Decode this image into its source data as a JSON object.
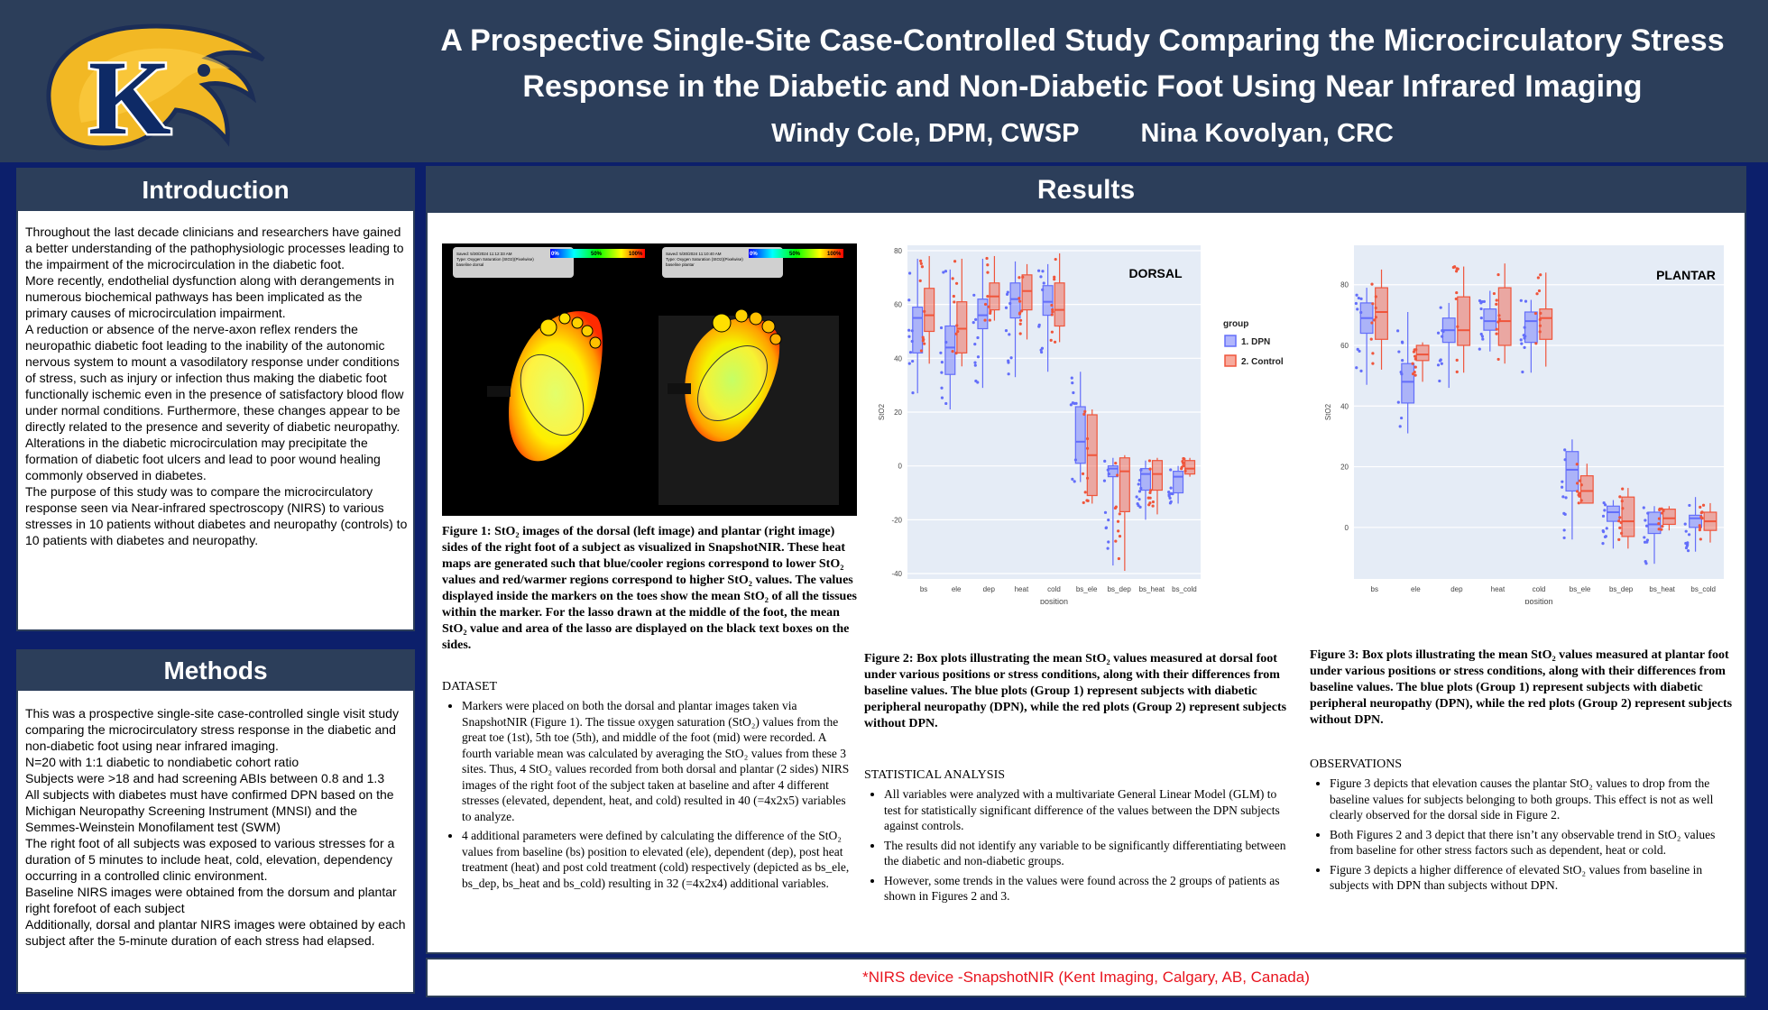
{
  "header": {
    "title_line1": "A Prospective Single-Site Case-Controlled Study Comparing the Microcirculatory Stress",
    "title_line2": "Response in the Diabetic and Non-Diabetic Foot Using Near Infrared Imaging",
    "author1": "Windy Cole, DPM, CWSP",
    "author2": "Nina Kovolyan, CRC",
    "logo_icon": "golden-eagle-k-logo-icon",
    "logo_letter": "K"
  },
  "introduction": {
    "title": "Introduction",
    "paragraphs": [
      "Throughout the last decade clinicians and researchers have gained a better understanding of the pathophysiologic processes leading to the impairment of the microcirculation in the diabetic foot.",
      "More recently, endothelial dysfunction along with derangements in numerous biochemical pathways has been implicated as the primary causes of microcirculation impairment.",
      "A reduction or absence of the nerve-axon reflex renders the neuropathic diabetic foot leading to the inability of the autonomic nervous system to mount a vasodilatory response under conditions of stress, such as injury or infection thus making the diabetic foot functionally ischemic even in the presence of satisfactory blood flow under normal conditions. Furthermore, these changes appear to be directly related to the presence and severity of diabetic neuropathy.",
      "Alterations in the diabetic microcirculation may precipitate the formation of diabetic foot ulcers and lead to poor wound healing commonly observed in diabetes.",
      "The purpose of this study was to compare the microcirculatory response seen via Near-infrared spectroscopy (NIRS) to various stresses in 10 patients without diabetes and neuropathy (controls) to 10 patients with diabetes and neuropathy."
    ]
  },
  "methods": {
    "title": "Methods",
    "paragraphs": [
      "This was a prospective single-site case-controlled  single visit study comparing the microcirculatory stress response in the diabetic and non-diabetic foot using near infrared imaging.",
      "N=20 with 1:1 diabetic to nondiabetic cohort ratio",
      "Subjects were >18 and had screening ABIs between 0.8 and 1.3",
      "All subjects with diabetes must have confirmed DPN based on the Michigan Neuropathy Screening Instrument (MNSI) and the Semmes-Weinstein Monofilament test (SWM)",
      "The right foot of all subjects was exposed to various stresses for a duration of 5 minutes to include heat, cold, elevation, dependency occurring in a controlled clinic environment.",
      "Baseline NIRS images were obtained from the dorsum and plantar right forefoot of each subject",
      "Additionally, dorsal and plantar NIRS images were obtained by each subject after the 5-minute duration of each stress had elapsed."
    ]
  },
  "results": {
    "title": "Results",
    "figure1": {
      "left_stamp": "Saved: 5/30/2024 11:12:33 AM\nType: Oxygen Saturation (StO2)(Pixelwise)\nbaseline dorsal",
      "right_stamp": "Saved: 5/30/2024 11:10:40 AM\nType: Oxygen Saturation (StO2)(Pixelwise)\nbaseline plantar",
      "scale_labels": [
        "0%",
        "50%",
        "100%"
      ],
      "caption": "Figure 1: StO₂ images of the dorsal (left image) and plantar (right image) sides of the right foot of a subject as visualized in SnapshotNIR. These heat maps are generated such that blue/cooler regions correspond to lower StO₂ values and red/warmer regions correspond to higher StO₂ values. The values displayed inside the markers on the toes show the mean StO₂ of all the tissues within the marker. For the lasso drawn at the middle of the foot, the mean StO₂  value and area of the lasso are displayed on the black text boxes on the sides."
    },
    "dataset": {
      "heading": "DATASET",
      "bullets": [
        "Markers were placed on both the dorsal and plantar images taken via SnapshotNIR (Figure 1). The tissue oxygen saturation (StO₂) values from the great toe (1st), 5th toe (5th), and middle of the foot (mid) were recorded. A fourth variable mean was calculated by averaging the StO₂ values from these 3 sites. Thus, 4 StO₂ values recorded from both dorsal and plantar (2 sides) NIRS images of the right foot  of the subject taken at baseline and after 4 different stresses (elevated, dependent, heat, and cold) resulted in 40 (=4x2x5) variables to analyze.",
        "4 additional parameters were defined by calculating the difference of the StO₂ values from baseline (bs) position to elevated (ele), dependent (dep), post heat treatment (heat) and post cold treatment (cold) respectively (depicted as bs_ele, bs_dep, bs_heat and bs_cold) resulting in 32 (=4x2x4) additional variables."
      ]
    },
    "figure2_caption": "Figure 2: Box plots illustrating the mean StO₂ values measured at dorsal foot under various positions or stress conditions, along with their differences from baseline values. The blue plots (Group 1) represent subjects with diabetic peripheral neuropathy (DPN), while the red plots (Group 2) represent subjects without DPN.",
    "figure3_caption": "Figure 3: Box plots illustrating the mean StO₂ values measured at plantar foot under various positions or stress conditions, along with their differences from baseline values. The blue plots (Group 1) represent subjects with diabetic peripheral neuropathy (DPN), while the red plots (Group 2) represent subjects without DPN.",
    "statistical": {
      "heading": "STATISTICAL ANALYSIS",
      "bullets": [
        "All variables were analyzed with a multivariate General Linear Model (GLM) to test for statistically significant difference of the values between the DPN subjects against controls.",
        "The results did not identify any variable to be significantly differentiating between the diabetic and non-diabetic groups.",
        "However, some trends in the values were found across the 2 groups of patients as shown in Figures 2 and 3."
      ]
    },
    "observations": {
      "heading": "OBSERVATIONS",
      "bullets": [
        "Figure 3 depicts that elevation causes the plantar StO₂ values to drop from the baseline values for subjects belonging to both groups. This effect is not as well clearly observed for the dorsal side in Figure 2.",
        "Both Figures 2 and 3 depict that there isn’t any observable trend in StO₂ values from baseline for other stress factors such as dependent, heat or cold.",
        "Figure 3 depicts a higher difference of elevated StO₂ values from baseline in subjects with DPN than subjects without DPN."
      ]
    },
    "footnote": "*NIRS device -SnapshotNIR (Kent Imaging, Calgary, AB, Canada)"
  },
  "chart_data": [
    {
      "type": "box",
      "title": "DORSAL",
      "xlabel": "position",
      "ylabel": "StO2",
      "ylim": [
        -42,
        82
      ],
      "yticks": [
        80,
        60,
        40,
        20,
        0,
        -20,
        -40
      ],
      "categories": [
        "bs",
        "ele",
        "dep",
        "heat",
        "cold",
        "bs_ele",
        "bs_dep",
        "bs_heat",
        "bs_cold"
      ],
      "legend": {
        "title": "group",
        "entries": [
          "1. DPN",
          "2. Control"
        ]
      },
      "colors": {
        "dpn": "#636efa",
        "control": "#ef553b"
      },
      "series": [
        {
          "name": "1. DPN",
          "boxes": [
            {
              "min": 27,
              "q1": 42,
              "median": 55,
              "q3": 59,
              "max": 77
            },
            {
              "min": 21,
              "q1": 34,
              "median": 44,
              "q3": 52,
              "max": 73
            },
            {
              "min": 29,
              "q1": 51,
              "median": 56,
              "q3": 62,
              "max": 77
            },
            {
              "min": 33,
              "q1": 55,
              "median": 62,
              "q3": 68,
              "max": 76
            },
            {
              "min": 35,
              "q1": 56,
              "median": 61,
              "q3": 67,
              "max": 75
            },
            {
              "min": -6,
              "q1": 1,
              "median": 9,
              "q3": 22,
              "max": 35
            },
            {
              "min": -37,
              "q1": -4,
              "median": -1,
              "q3": 0,
              "max": 3
            },
            {
              "min": -20,
              "q1": -9,
              "median": -3,
              "q3": -1,
              "max": 2
            },
            {
              "min": -14,
              "q1": -10,
              "median": -4,
              "q3": -2,
              "max": 0
            }
          ]
        },
        {
          "name": "2. Control",
          "boxes": [
            {
              "min": 38,
              "q1": 50,
              "median": 56,
              "q3": 66,
              "max": 78
            },
            {
              "min": 37,
              "q1": 42,
              "median": 51,
              "q3": 61,
              "max": 77
            },
            {
              "min": 54,
              "q1": 58,
              "median": 63,
              "q3": 68,
              "max": 78
            },
            {
              "min": 47,
              "q1": 58,
              "median": 65,
              "q3": 71,
              "max": 75
            },
            {
              "min": 46,
              "q1": 52,
              "median": 58,
              "q3": 68,
              "max": 79
            },
            {
              "min": -14,
              "q1": -11,
              "median": 4,
              "q3": 19,
              "max": 21
            },
            {
              "min": -39,
              "q1": -17,
              "median": -2,
              "q3": 3,
              "max": 4
            },
            {
              "min": -18,
              "q1": -9,
              "median": -3,
              "q3": 2,
              "max": 3
            },
            {
              "min": -4,
              "q1": -3,
              "median": -1,
              "q3": 2,
              "max": 3
            }
          ]
        }
      ]
    },
    {
      "type": "box",
      "title": "PLANTAR",
      "xlabel": "position",
      "ylabel": "StO2",
      "ylim": [
        -17,
        93
      ],
      "yticks": [
        80,
        60,
        40,
        20,
        0
      ],
      "categories": [
        "bs",
        "ele",
        "dep",
        "heat",
        "cold",
        "bs_ele",
        "bs_dep",
        "bs_heat",
        "bs_cold"
      ],
      "colors": {
        "dpn": "#636efa",
        "control": "#ef553b"
      },
      "series": [
        {
          "name": "1. DPN",
          "boxes": [
            {
              "min": 47,
              "q1": 64,
              "median": 69,
              "q3": 74,
              "max": 79
            },
            {
              "min": 31,
              "q1": 41,
              "median": 48,
              "q3": 54,
              "max": 71
            },
            {
              "min": 46,
              "q1": 61,
              "median": 65,
              "q3": 69,
              "max": 74
            },
            {
              "min": 58,
              "q1": 65,
              "median": 68,
              "q3": 72,
              "max": 78
            },
            {
              "min": 51,
              "q1": 61,
              "median": 68,
              "q3": 71,
              "max": 75
            },
            {
              "min": -4,
              "q1": 12,
              "median": 19,
              "q3": 25,
              "max": 29
            },
            {
              "min": -7,
              "q1": 2,
              "median": 5,
              "q3": 7,
              "max": 9
            },
            {
              "min": -12,
              "q1": -2,
              "median": 1,
              "q3": 5,
              "max": 7
            },
            {
              "min": -8,
              "q1": 0,
              "median": 3,
              "q3": 4,
              "max": 10
            }
          ]
        },
        {
          "name": "2. Control",
          "boxes": [
            {
              "min": 52,
              "q1": 62,
              "median": 71,
              "q3": 79,
              "max": 85
            },
            {
              "min": 48,
              "q1": 55,
              "median": 57,
              "q3": 60,
              "max": 61
            },
            {
              "min": 51,
              "q1": 60,
              "median": 65,
              "q3": 76,
              "max": 86
            },
            {
              "min": 54,
              "q1": 60,
              "median": 68,
              "q3": 79,
              "max": 87
            },
            {
              "min": 53,
              "q1": 62,
              "median": 69,
              "q3": 72,
              "max": 84
            },
            {
              "min": 8,
              "q1": 8,
              "median": 12,
              "q3": 17,
              "max": 21
            },
            {
              "min": -7,
              "q1": -3,
              "median": 2,
              "q3": 10,
              "max": 13
            },
            {
              "min": -1,
              "q1": 1,
              "median": 3,
              "q3": 6,
              "max": 7
            },
            {
              "min": -5,
              "q1": -1,
              "median": 2,
              "q3": 5,
              "max": 8
            }
          ]
        }
      ]
    }
  ]
}
